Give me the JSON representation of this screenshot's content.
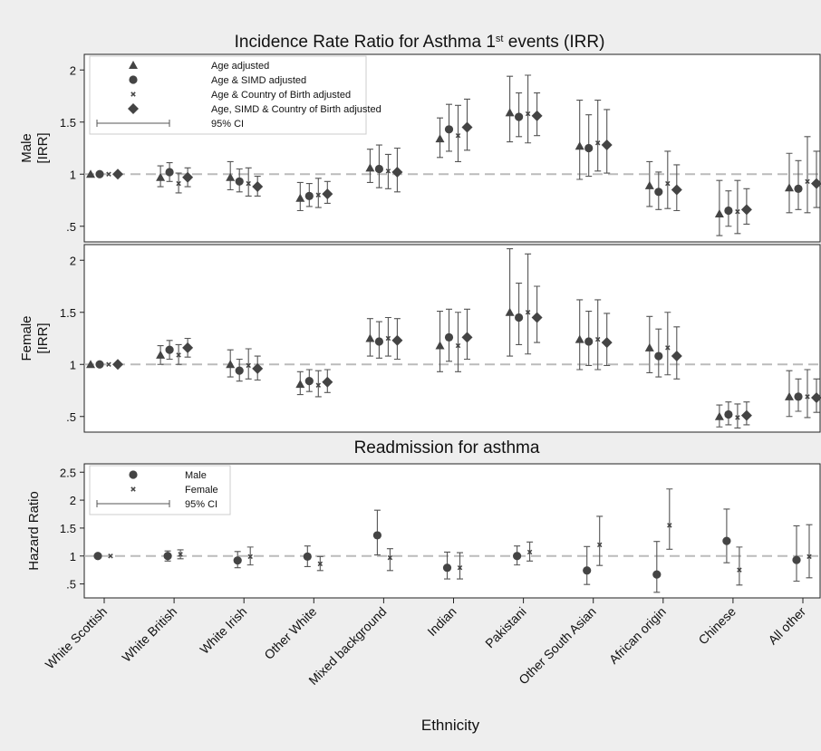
{
  "chart_data": [
    {
      "type": "scatter",
      "panel": "top",
      "title": "Incidence Rate Ratio for Asthma 1st events (IRR)",
      "title_main": "Incidence Rate Ratio for Asthma 1",
      "title_sup": "st",
      "title_tail": " events (IRR)",
      "ylabel": [
        "Male",
        "[IRR]"
      ],
      "ylim": [
        0.35,
        2.15
      ],
      "yticks": [
        0.5,
        1,
        1.5,
        2
      ],
      "ytick_labels": [
        ".5",
        "1",
        "1.5",
        "2"
      ],
      "reference_line": 1,
      "grid": false,
      "legend": {
        "placement": "top-left",
        "entries": [
          {
            "label": "Age adjusted",
            "marker": "triangle"
          },
          {
            "label": "Age & SIMD adjusted",
            "marker": "circle"
          },
          {
            "label": "Age & Country of Birth adjusted",
            "marker": "x"
          },
          {
            "label": "Age, SIMD & Country of Birth adjusted",
            "marker": "diamond"
          },
          {
            "label": "95% CI",
            "marker": "ci"
          }
        ]
      },
      "categories": [
        "White Scottish",
        "White British",
        "White Irish",
        "Other White",
        "Mixed background",
        "Indian",
        "Pakistani",
        "Other South Asian",
        "African origin",
        "Chinese",
        "All other"
      ],
      "series": [
        {
          "name": "Age adjusted",
          "marker": "triangle",
          "values": [
            1.0,
            0.97,
            0.97,
            0.77,
            1.06,
            1.34,
            1.59,
            1.27,
            0.89,
            0.62,
            0.87
          ],
          "lower": [
            null,
            0.88,
            0.85,
            0.65,
            0.92,
            1.16,
            1.31,
            0.95,
            0.69,
            0.41,
            0.63
          ],
          "upper": [
            null,
            1.08,
            1.12,
            0.92,
            1.24,
            1.54,
            1.94,
            1.71,
            1.12,
            0.94,
            1.2
          ]
        },
        {
          "name": "Age & SIMD adjusted",
          "marker": "circle",
          "values": [
            1.0,
            1.02,
            0.93,
            0.79,
            1.05,
            1.43,
            1.55,
            1.25,
            0.83,
            0.65,
            0.86
          ],
          "lower": [
            null,
            0.93,
            0.83,
            0.69,
            0.87,
            1.22,
            1.36,
            0.98,
            0.66,
            0.5,
            0.66
          ],
          "upper": [
            null,
            1.11,
            1.05,
            0.91,
            1.28,
            1.67,
            1.78,
            1.57,
            1.02,
            0.84,
            1.13
          ]
        },
        {
          "name": "Age & Country of Birth adjusted",
          "marker": "x",
          "values": [
            1.0,
            0.91,
            0.91,
            0.8,
            1.03,
            1.37,
            1.58,
            1.3,
            0.91,
            0.64,
            0.93
          ],
          "lower": [
            null,
            0.82,
            0.79,
            0.68,
            0.86,
            1.12,
            1.3,
            1.03,
            0.67,
            0.43,
            0.63
          ],
          "upper": [
            null,
            1.01,
            1.06,
            0.96,
            1.19,
            1.66,
            1.95,
            1.71,
            1.22,
            0.94,
            1.36
          ]
        },
        {
          "name": "Age, SIMD & Country of Birth adjusted",
          "marker": "diamond",
          "values": [
            1.0,
            0.97,
            0.88,
            0.81,
            1.02,
            1.45,
            1.56,
            1.28,
            0.85,
            0.66,
            0.91
          ],
          "lower": [
            null,
            0.88,
            0.79,
            0.72,
            0.83,
            1.23,
            1.37,
            1.01,
            0.65,
            0.52,
            0.68
          ],
          "upper": [
            null,
            1.06,
            0.98,
            0.93,
            1.25,
            1.72,
            1.78,
            1.62,
            1.09,
            0.86,
            1.22
          ]
        }
      ]
    },
    {
      "type": "scatter",
      "panel": "middle",
      "ylabel": [
        "Female",
        "[IRR]"
      ],
      "ylim": [
        0.35,
        2.15
      ],
      "yticks": [
        0.5,
        1,
        1.5,
        2
      ],
      "ytick_labels": [
        ".5",
        "1",
        "1.5",
        "2"
      ],
      "reference_line": 1,
      "grid": false,
      "categories": [
        "White Scottish",
        "White British",
        "White Irish",
        "Other White",
        "Mixed background",
        "Indian",
        "Pakistani",
        "Other South Asian",
        "African origin",
        "Chinese",
        "All other"
      ],
      "series": [
        {
          "name": "Age adjusted",
          "marker": "triangle",
          "values": [
            1.0,
            1.09,
            1.0,
            0.81,
            1.25,
            1.18,
            1.5,
            1.24,
            1.16,
            0.5,
            0.69
          ],
          "lower": [
            null,
            1.0,
            0.88,
            0.71,
            1.08,
            0.93,
            1.08,
            0.95,
            0.92,
            0.4,
            0.5
          ],
          "upper": [
            null,
            1.18,
            1.14,
            0.93,
            1.44,
            1.51,
            2.11,
            1.62,
            1.46,
            0.61,
            0.94
          ]
        },
        {
          "name": "Age & SIMD adjusted",
          "marker": "circle",
          "values": [
            1.0,
            1.14,
            0.94,
            0.84,
            1.22,
            1.26,
            1.45,
            1.22,
            1.08,
            0.52,
            0.69
          ],
          "lower": [
            null,
            1.05,
            0.84,
            0.74,
            1.06,
            1.03,
            1.19,
            0.99,
            0.88,
            0.42,
            0.55
          ],
          "upper": [
            null,
            1.23,
            1.05,
            0.95,
            1.41,
            1.53,
            1.78,
            1.51,
            1.34,
            0.64,
            0.86
          ]
        },
        {
          "name": "Age & Country of Birth adjusted",
          "marker": "x",
          "values": [
            1.0,
            1.09,
            0.99,
            0.8,
            1.25,
            1.18,
            1.5,
            1.24,
            1.16,
            0.49,
            0.69
          ],
          "lower": [
            null,
            1.0,
            0.86,
            0.69,
            1.08,
            0.93,
            1.1,
            0.95,
            0.9,
            0.39,
            0.49
          ],
          "upper": [
            null,
            1.19,
            1.15,
            0.94,
            1.45,
            1.5,
            2.06,
            1.62,
            1.5,
            0.62,
            0.95
          ]
        },
        {
          "name": "Age, SIMD & Country of Birth adjusted",
          "marker": "diamond",
          "values": [
            1.0,
            1.16,
            0.96,
            0.83,
            1.23,
            1.26,
            1.45,
            1.21,
            1.08,
            0.51,
            0.68
          ],
          "lower": [
            null,
            1.07,
            0.85,
            0.73,
            1.05,
            1.05,
            1.21,
            0.99,
            0.86,
            0.42,
            0.54
          ],
          "upper": [
            null,
            1.25,
            1.08,
            0.95,
            1.44,
            1.53,
            1.75,
            1.49,
            1.36,
            0.64,
            0.86
          ]
        }
      ]
    },
    {
      "type": "scatter",
      "panel": "bottom",
      "title": "Readmission for asthma",
      "ylabel": [
        "Hazard Ratio"
      ],
      "ylim": [
        0.25,
        2.65
      ],
      "yticks": [
        0.5,
        1,
        1.5,
        2,
        2.5
      ],
      "ytick_labels": [
        ".5",
        "1",
        "1.5",
        "2",
        "2.5"
      ],
      "reference_line": 1,
      "grid": false,
      "xlabel": "Ethnicity",
      "legend": {
        "placement": "top-left",
        "entries": [
          {
            "label": "Male",
            "marker": "circle"
          },
          {
            "label": "Female",
            "marker": "x"
          },
          {
            "label": "95% CI",
            "marker": "ci"
          }
        ]
      },
      "categories": [
        "White Scottish",
        "White British",
        "White Irish",
        "Other White",
        "Mixed background",
        "Indian",
        "Pakistani",
        "Other South Asian",
        "African origin",
        "Chinese",
        "All other"
      ],
      "series": [
        {
          "name": "Male",
          "marker": "circle",
          "values": [
            1.0,
            1.0,
            0.92,
            0.99,
            1.37,
            0.79,
            1.0,
            0.74,
            0.67,
            1.27,
            0.93
          ],
          "lower": [
            null,
            0.91,
            0.79,
            0.81,
            1.02,
            0.59,
            0.84,
            0.49,
            0.35,
            0.88,
            0.55
          ],
          "upper": [
            null,
            1.09,
            1.08,
            1.18,
            1.82,
            1.07,
            1.18,
            1.17,
            1.26,
            1.84,
            1.54
          ]
        },
        {
          "name": "Female",
          "marker": "x",
          "values": [
            1.0,
            1.03,
            0.99,
            0.86,
            0.97,
            0.79,
            1.07,
            1.2,
            1.55,
            0.75,
            0.99
          ],
          "lower": [
            null,
            0.95,
            0.84,
            0.74,
            0.74,
            0.59,
            0.91,
            0.83,
            1.12,
            0.48,
            0.61
          ],
          "upper": [
            null,
            1.11,
            1.16,
            0.99,
            1.13,
            1.06,
            1.25,
            1.71,
            2.2,
            1.16,
            1.56
          ]
        }
      ]
    }
  ]
}
